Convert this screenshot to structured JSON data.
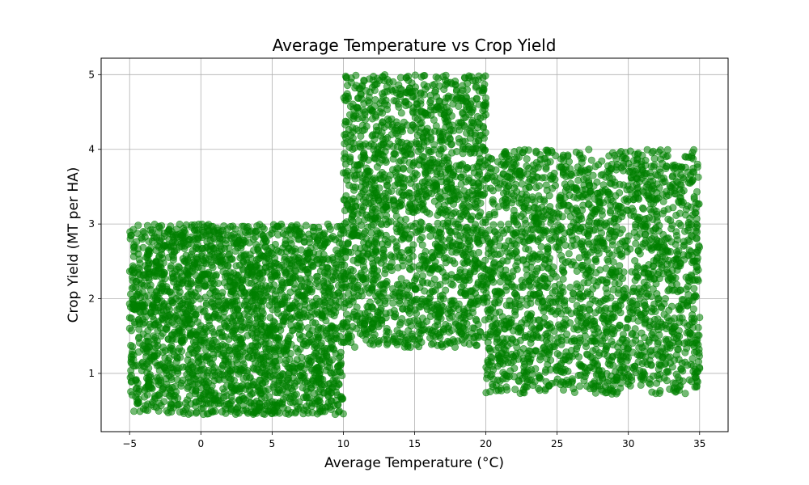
{
  "chart_data": {
    "type": "scatter",
    "title": "Average Temperature vs Crop Yield",
    "xlabel": "Average Temperature (°C)",
    "ylabel": "Crop Yield (MT per HA)",
    "xlim": [
      -7,
      37
    ],
    "ylim": [
      0.22,
      5.22
    ],
    "xticks": [
      -5,
      0,
      5,
      10,
      15,
      20,
      25,
      30,
      35
    ],
    "yticks": [
      1,
      2,
      3,
      4,
      5
    ],
    "grid": true,
    "marker_color": "#008000",
    "marker_alpha": 0.55,
    "regions": [
      {
        "x_range": [
          -5,
          10
        ],
        "y_range": [
          0.45,
          3.0
        ],
        "approx_points": 2400
      },
      {
        "x_range": [
          10,
          20
        ],
        "y_range": [
          1.35,
          5.0
        ],
        "approx_points": 1800
      },
      {
        "x_range": [
          20,
          35
        ],
        "y_range": [
          0.72,
          4.0
        ],
        "approx_points": 2200
      }
    ]
  }
}
